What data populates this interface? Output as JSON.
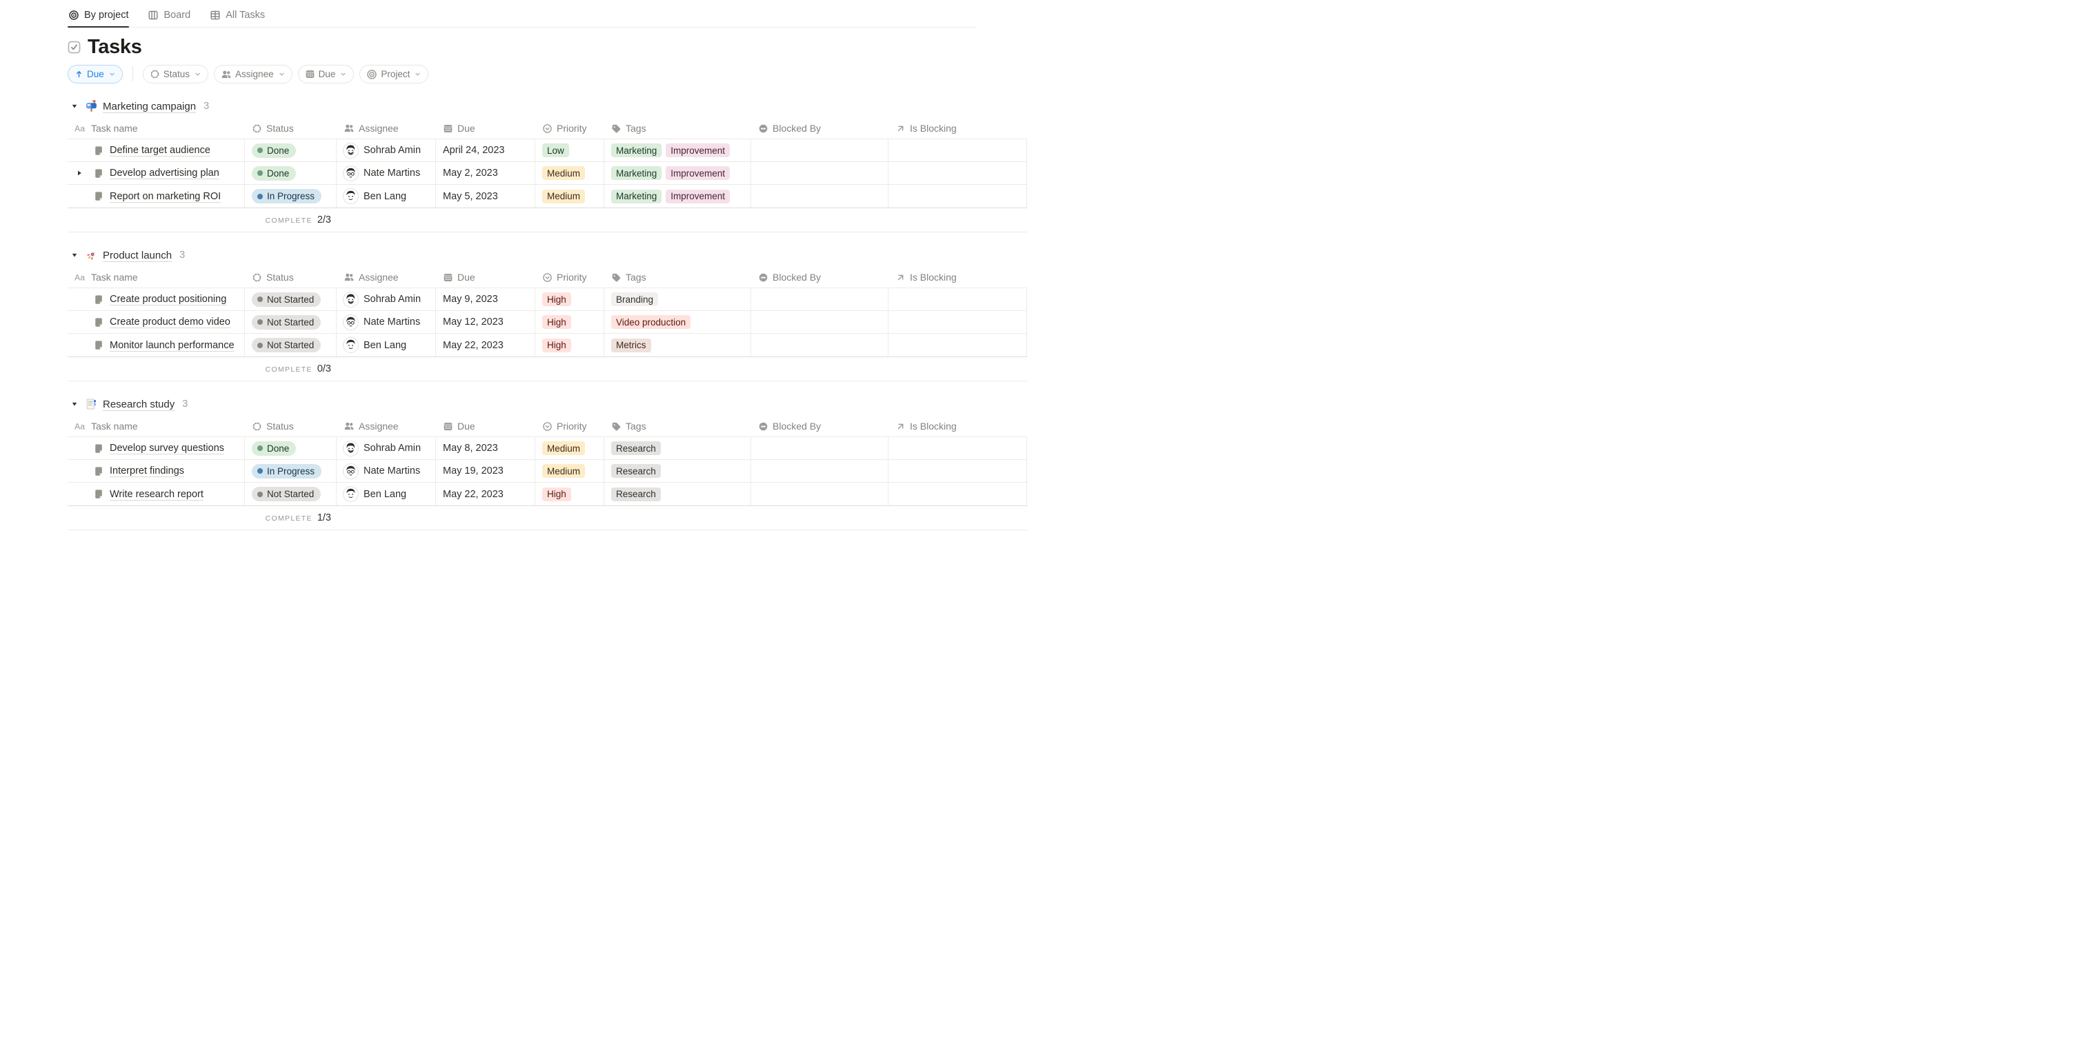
{
  "view_tabs": [
    {
      "label": "By project",
      "icon": "target-icon",
      "active": true
    },
    {
      "label": "Board",
      "icon": "board-icon",
      "active": false
    },
    {
      "label": "All Tasks",
      "icon": "table-icon",
      "active": false
    }
  ],
  "page": {
    "title": "Tasks",
    "icon": "checkbox-icon"
  },
  "toolbar": {
    "sort_pill": {
      "label": "Due",
      "direction_icon": "arrow-up-icon",
      "chevron_icon": "chevron-down-icon"
    },
    "filter_pills": [
      {
        "label": "Status",
        "icon": "status-spinner-icon"
      },
      {
        "label": "Assignee",
        "icon": "people-icon"
      },
      {
        "label": "Due",
        "icon": "calendar-icon"
      },
      {
        "label": "Project",
        "icon": "target-icon"
      }
    ]
  },
  "columns": [
    {
      "key": "task",
      "label": "Task name",
      "icon": "aa-icon"
    },
    {
      "key": "status",
      "label": "Status",
      "icon": "status-spinner-icon"
    },
    {
      "key": "assignee",
      "label": "Assignee",
      "icon": "people-icon"
    },
    {
      "key": "due",
      "label": "Due",
      "icon": "calendar-icon"
    },
    {
      "key": "priority",
      "label": "Priority",
      "icon": "priority-select-icon"
    },
    {
      "key": "tags",
      "label": "Tags",
      "icon": "tag-icon"
    },
    {
      "key": "blocked_by",
      "label": "Blocked By",
      "icon": "blocked-icon"
    },
    {
      "key": "is_blocking",
      "label": "Is Blocking",
      "icon": "arrow-up-right-icon"
    }
  ],
  "calc": {
    "label": "COMPLETE"
  },
  "palette": {
    "accent_blue": "#2383E2",
    "green": {
      "bg": "#DBEDDB",
      "text": "#1C3829",
      "dot": "#6C9B7D"
    },
    "blue": {
      "bg": "#D3E5EF",
      "text": "#183347",
      "dot": "#437EA8"
    },
    "gray": {
      "bg": "#E3E2E0",
      "text": "#32302C",
      "dot": "#86857F"
    },
    "lightgray": {
      "bg": "#F1F0EE",
      "text": "#32302C",
      "dot": "#A5A4A1"
    },
    "yellow": {
      "bg": "#FDECC8",
      "text": "#402C1B",
      "dot": "#CB912F"
    },
    "red": {
      "bg": "#FFE2DD",
      "text": "#5D1715",
      "dot": "#E16F64"
    },
    "pink": {
      "bg": "#F5E0E9",
      "text": "#4C2337",
      "dot": "#DA7BA2"
    },
    "brown": {
      "bg": "#EEE0DA",
      "text": "#442A1E",
      "dot": "#9F6B53"
    }
  },
  "groups": [
    {
      "name": "Marketing campaign",
      "emoji": "mailbox-emoji",
      "count": "3",
      "complete": "2/3",
      "rows": [
        {
          "task": "Define target audience",
          "has_subitems": false,
          "status": {
            "label": "Done",
            "color": "green"
          },
          "assignee": {
            "name": "Sohrab Amin",
            "avatar": "sohrab"
          },
          "due": "April 24, 2023",
          "priority": {
            "label": "Low",
            "color": "green"
          },
          "tags": [
            {
              "label": "Marketing",
              "color": "green"
            },
            {
              "label": "Improvement",
              "color": "pink"
            }
          ]
        },
        {
          "task": "Develop advertising plan",
          "has_subitems": true,
          "status": {
            "label": "Done",
            "color": "green"
          },
          "assignee": {
            "name": "Nate Martins",
            "avatar": "nate"
          },
          "due": "May 2, 2023",
          "priority": {
            "label": "Medium",
            "color": "yellow"
          },
          "tags": [
            {
              "label": "Marketing",
              "color": "green"
            },
            {
              "label": "Improvement",
              "color": "pink"
            }
          ]
        },
        {
          "task": "Report on marketing ROI",
          "has_subitems": false,
          "status": {
            "label": "In Progress",
            "color": "blue"
          },
          "assignee": {
            "name": "Ben Lang",
            "avatar": "ben"
          },
          "due": "May 5, 2023",
          "priority": {
            "label": "Medium",
            "color": "yellow"
          },
          "tags": [
            {
              "label": "Marketing",
              "color": "green"
            },
            {
              "label": "Improvement",
              "color": "pink"
            }
          ]
        }
      ]
    },
    {
      "name": "Product launch",
      "emoji": "rocket-emoji",
      "count": "3",
      "complete": "0/3",
      "rows": [
        {
          "task": "Create product positioning",
          "has_subitems": false,
          "status": {
            "label": "Not Started",
            "color": "gray"
          },
          "assignee": {
            "name": "Sohrab Amin",
            "avatar": "sohrab"
          },
          "due": "May 9, 2023",
          "priority": {
            "label": "High",
            "color": "red"
          },
          "tags": [
            {
              "label": "Branding",
              "color": "lightgray"
            }
          ]
        },
        {
          "task": "Create product demo video",
          "has_subitems": false,
          "status": {
            "label": "Not Started",
            "color": "gray"
          },
          "assignee": {
            "name": "Nate Martins",
            "avatar": "nate"
          },
          "due": "May 12, 2023",
          "priority": {
            "label": "High",
            "color": "red"
          },
          "tags": [
            {
              "label": "Video production",
              "color": "red"
            }
          ]
        },
        {
          "task": "Monitor launch performance",
          "has_subitems": false,
          "status": {
            "label": "Not Started",
            "color": "gray"
          },
          "assignee": {
            "name": "Ben Lang",
            "avatar": "ben"
          },
          "due": "May 22, 2023",
          "priority": {
            "label": "High",
            "color": "red"
          },
          "tags": [
            {
              "label": "Metrics",
              "color": "brown"
            }
          ]
        }
      ]
    },
    {
      "name": "Research study",
      "emoji": "bookmark-tabs-emoji",
      "count": "3",
      "complete": "1/3",
      "rows": [
        {
          "task": "Develop survey questions",
          "has_subitems": false,
          "status": {
            "label": "Done",
            "color": "green"
          },
          "assignee": {
            "name": "Sohrab Amin",
            "avatar": "sohrab"
          },
          "due": "May 8, 2023",
          "priority": {
            "label": "Medium",
            "color": "yellow"
          },
          "tags": [
            {
              "label": "Research",
              "color": "gray"
            }
          ]
        },
        {
          "task": "Interpret findings",
          "has_subitems": false,
          "status": {
            "label": "In Progress",
            "color": "blue"
          },
          "assignee": {
            "name": "Nate Martins",
            "avatar": "nate"
          },
          "due": "May 19, 2023",
          "priority": {
            "label": "Medium",
            "color": "yellow"
          },
          "tags": [
            {
              "label": "Research",
              "color": "gray"
            }
          ]
        },
        {
          "task": "Write research report",
          "has_subitems": false,
          "status": {
            "label": "Not Started",
            "color": "gray"
          },
          "assignee": {
            "name": "Ben Lang",
            "avatar": "ben"
          },
          "due": "May 22, 2023",
          "priority": {
            "label": "High",
            "color": "red"
          },
          "tags": [
            {
              "label": "Research",
              "color": "gray"
            }
          ]
        }
      ]
    }
  ]
}
